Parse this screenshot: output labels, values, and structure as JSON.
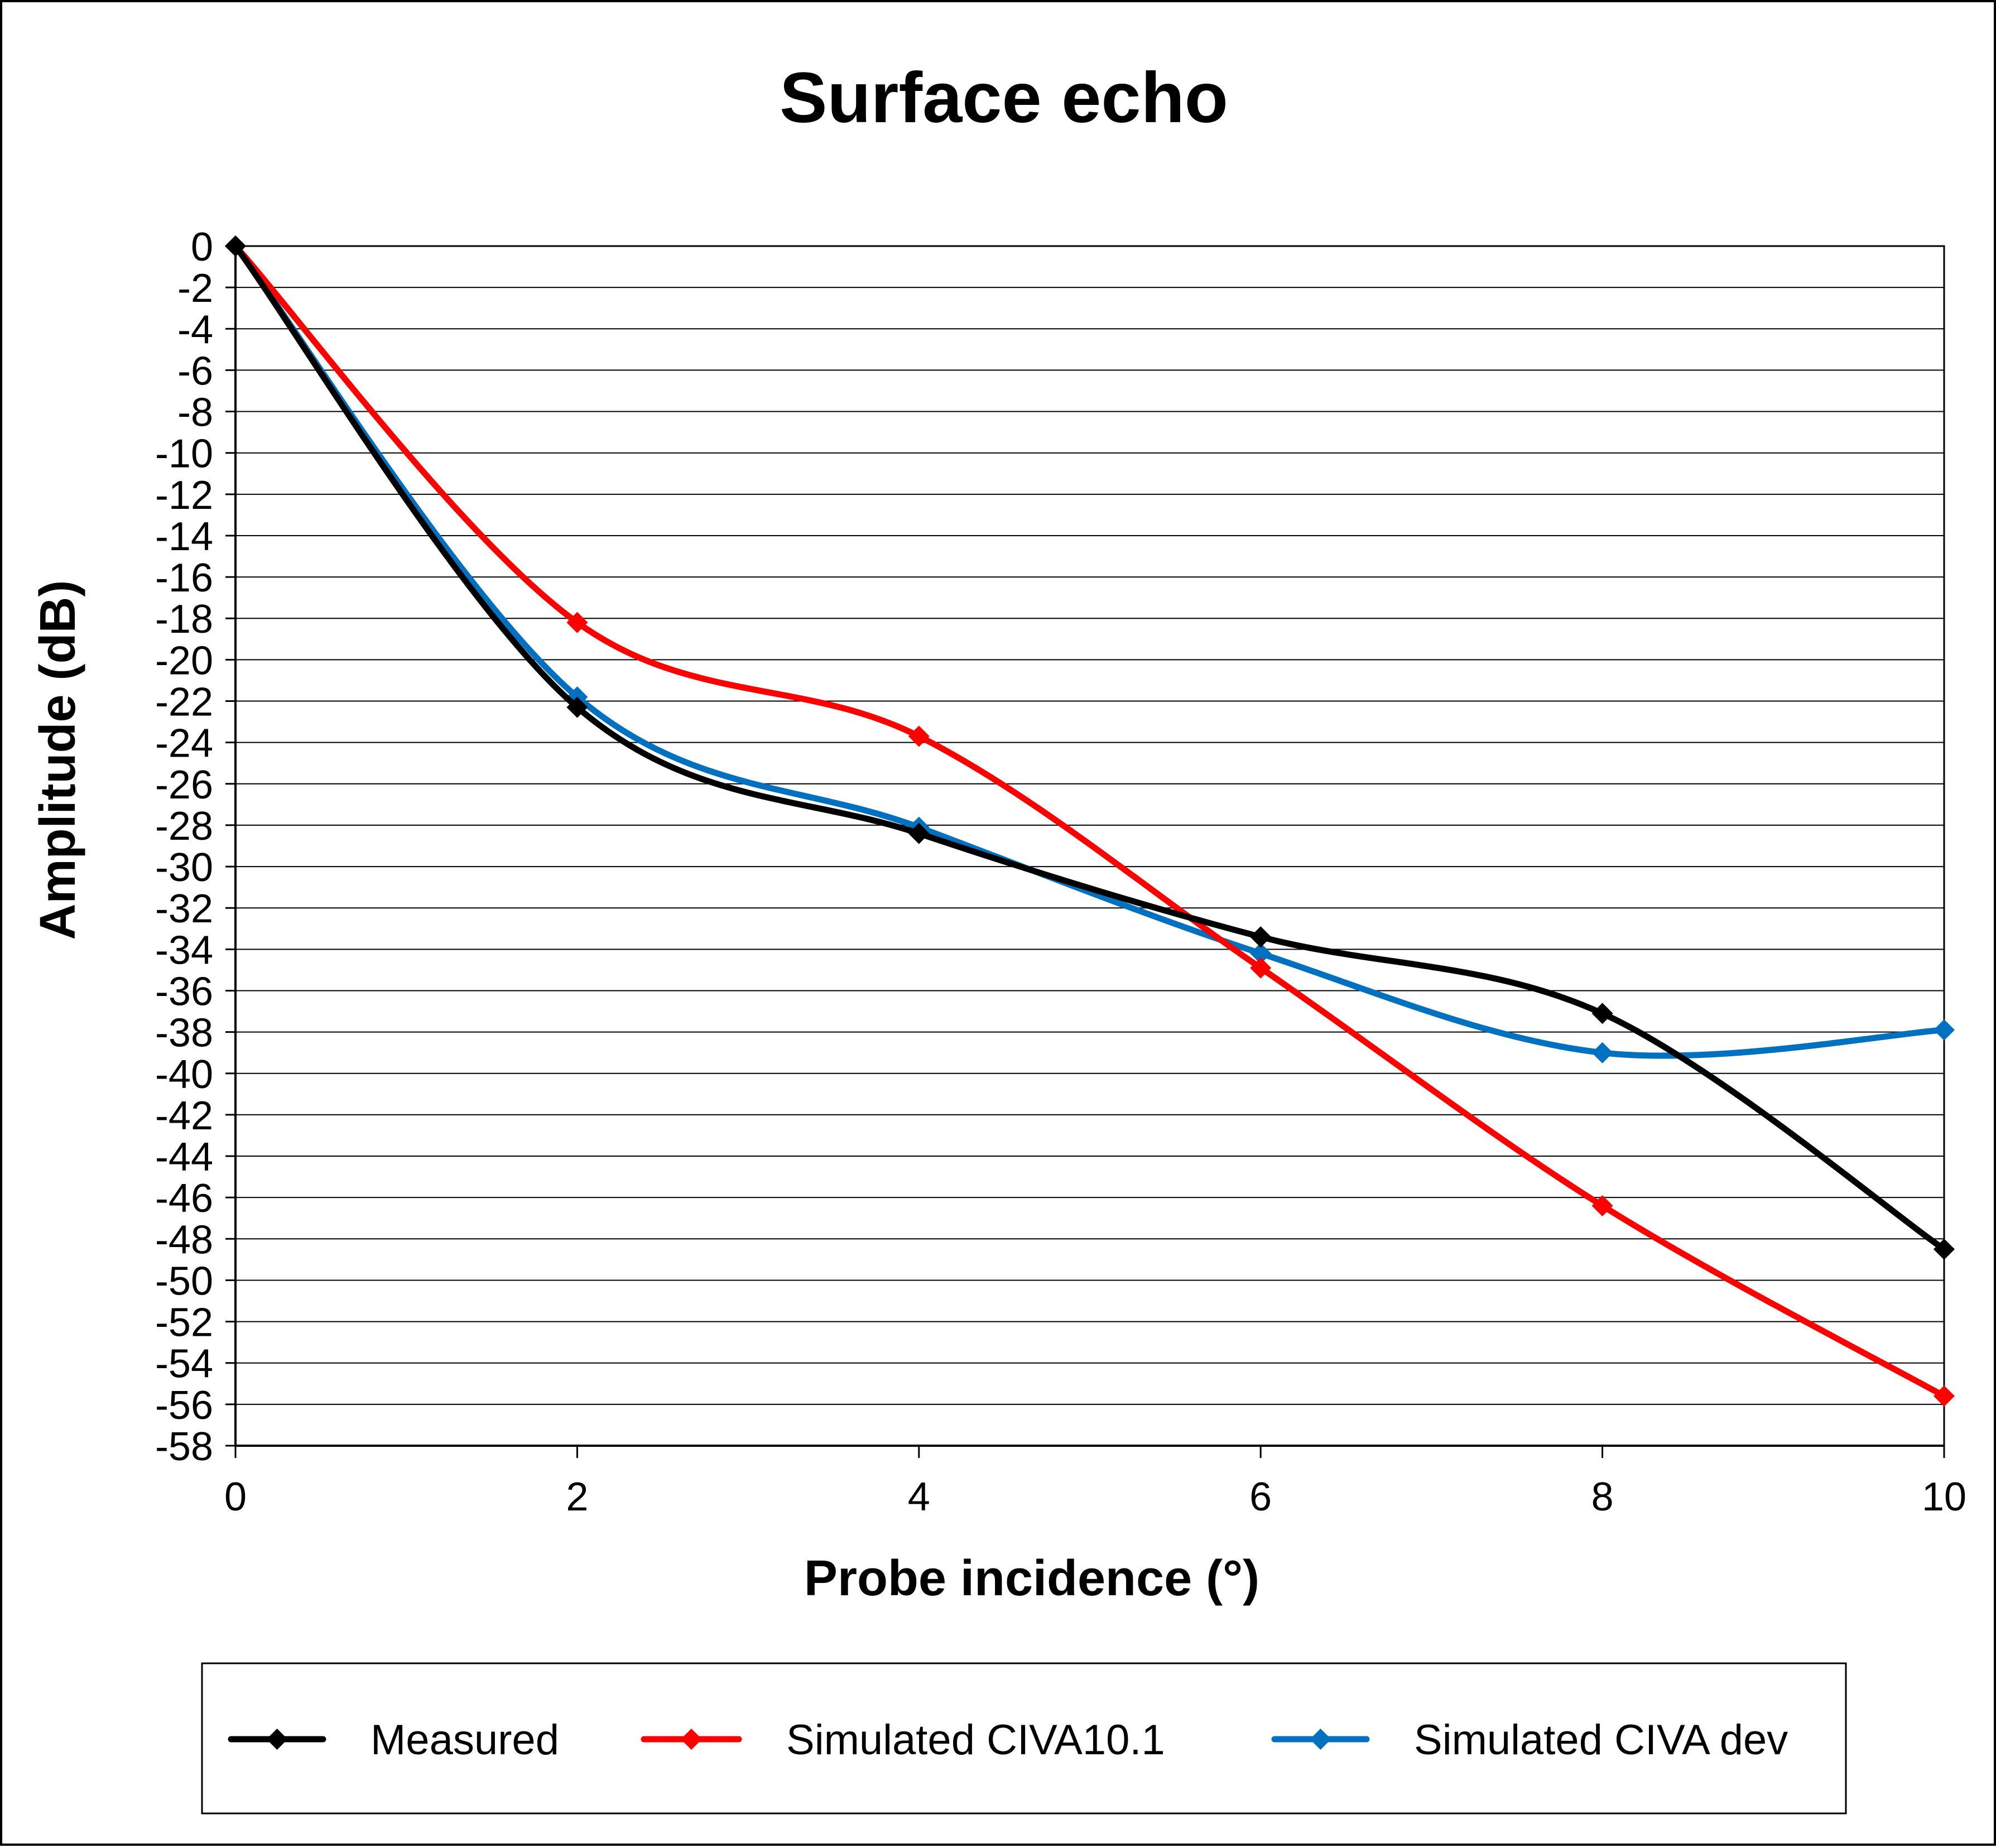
{
  "chart_data": {
    "type": "line",
    "title": "Surface echo",
    "xlabel": "Probe incidence (°)",
    "ylabel": "Amplitude (dB)",
    "x": [
      0,
      2,
      4,
      6,
      8,
      10
    ],
    "xlim": [
      0,
      10
    ],
    "ylim": [
      -58,
      0
    ],
    "x_ticks": [
      0,
      2,
      4,
      6,
      8,
      10
    ],
    "y_ticks": [
      0,
      -2,
      -4,
      -6,
      -8,
      -10,
      -12,
      -14,
      -16,
      -18,
      -20,
      -22,
      -24,
      -26,
      -28,
      -30,
      -32,
      -34,
      -36,
      -38,
      -40,
      -42,
      -44,
      -46,
      -48,
      -50,
      -52,
      -54,
      -56,
      -58
    ],
    "grid": "horizontal",
    "legend_position": "bottom",
    "series": [
      {
        "name": "Measured",
        "color": "#000000",
        "values": [
          0,
          -22.3,
          -28.4,
          -33.4,
          -37.1,
          -48.5
        ]
      },
      {
        "name": "Simulated CIVA10.1",
        "color": "#ff0000",
        "values": [
          0,
          -18.2,
          -23.7,
          -34.9,
          -46.4,
          -55.6
        ]
      },
      {
        "name": "Simulated CIVA dev",
        "color": "#0070c0",
        "values": [
          0,
          -21.8,
          -28.1,
          -34.2,
          -39.0,
          -37.9
        ]
      }
    ]
  }
}
